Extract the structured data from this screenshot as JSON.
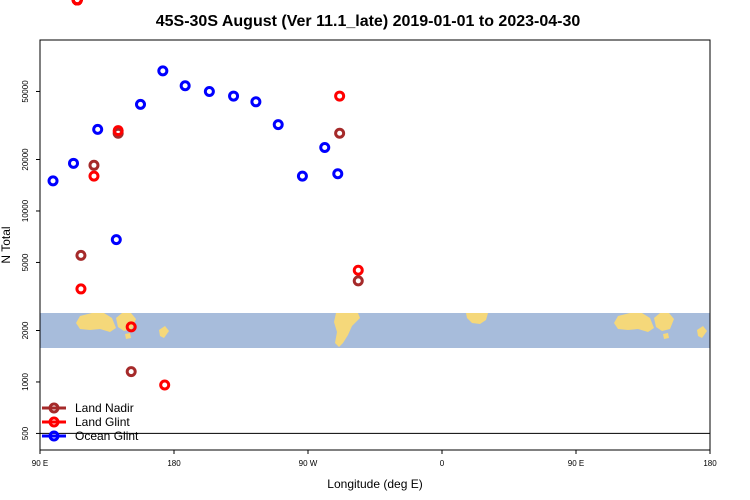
{
  "chart_data": {
    "type": "scatter",
    "title": "45S-30S August (Ver 11.1_late)   2019-01-01 to 2023-04-30",
    "xlabel": "Longitude (deg E)",
    "ylabel": "N Total",
    "y_scale": "log",
    "xlim": [
      90,
      450
    ],
    "ylim": [
      400,
      100000
    ],
    "x_ticks": [
      {
        "value": 90,
        "label": "90 E"
      },
      {
        "value": 162,
        "label": "180"
      },
      {
        "value": 234,
        "label": "90 W"
      },
      {
        "value": 306,
        "label": "0"
      },
      {
        "value": 378,
        "label": "90 E"
      },
      {
        "value": 450,
        "label": "180"
      }
    ],
    "y_ticks": [
      {
        "value": 500,
        "label": "500"
      },
      {
        "value": 1000,
        "label": "1000"
      },
      {
        "value": 2000,
        "label": "2000"
      },
      {
        "value": 5000,
        "label": "5000"
      },
      {
        "value": 10000,
        "label": "10000"
      },
      {
        "value": 20000,
        "label": "20000"
      },
      {
        "value": 50000,
        "label": "50000"
      }
    ],
    "grid": false,
    "legend_position": "bottom-left",
    "series": [
      {
        "name": "Land Nadir",
        "color": "#a52a2a",
        "points": [
          {
            "x": 112,
            "y": 5500
          },
          {
            "x": 119,
            "y": 18500
          },
          {
            "x": 132,
            "y": 28500
          },
          {
            "x": 139,
            "y": 1150
          },
          {
            "x": 251,
            "y": 28500
          },
          {
            "x": 261,
            "y": 3900
          },
          {
            "x": 110,
            "y": 0
          },
          {
            "x": 110,
            "y": 0
          },
          {
            "x": 110,
            "y": 0
          },
          {
            "x": 110,
            "y": 0
          },
          {
            "x": 110,
            "y": 0
          },
          {
            "x": 110,
            "y": 0
          },
          {
            "x": 110,
            "y": 0
          },
          {
            "x": 110,
            "y": 0
          }
        ]
      },
      {
        "name": "Land Glint",
        "color": "#ff0000",
        "points": [
          {
            "x": 112,
            "y": 3500
          },
          {
            "x": 119,
            "y": 16000
          },
          {
            "x": 132,
            "y": 29500
          },
          {
            "x": 139,
            "y": 2100
          },
          {
            "x": 157,
            "y": 960
          },
          {
            "x": 251,
            "y": 47000
          },
          {
            "x": 261,
            "y": 4500
          },
          {
            "x": 110,
            "y": 0
          },
          {
            "x": 110,
            "y": 0
          },
          {
            "x": 110,
            "y": 0
          },
          {
            "x": 110,
            "y": 0
          },
          {
            "x": 110,
            "y": 0
          },
          {
            "x": 110,
            "y": 0
          },
          {
            "x": 110,
            "y": 0
          }
        ]
      },
      {
        "name": "Ocean Glint",
        "color": "#0000ff",
        "points": [
          {
            "x": 97,
            "y": 15000
          },
          {
            "x": 108,
            "y": 19000
          },
          {
            "x": 121,
            "y": 30000
          },
          {
            "x": 131,
            "y": 6800
          },
          {
            "x": 144,
            "y": 42000
          },
          {
            "x": 156,
            "y": 66000
          },
          {
            "x": 168,
            "y": 54000
          },
          {
            "x": 181,
            "y": 50000
          },
          {
            "x": 194,
            "y": 47000
          },
          {
            "x": 206,
            "y": 43500
          },
          {
            "x": 218,
            "y": 32000
          },
          {
            "x": 231,
            "y": 16000
          },
          {
            "x": 243,
            "y": 23500
          },
          {
            "x": 250,
            "y": 16500
          }
        ]
      }
    ]
  }
}
